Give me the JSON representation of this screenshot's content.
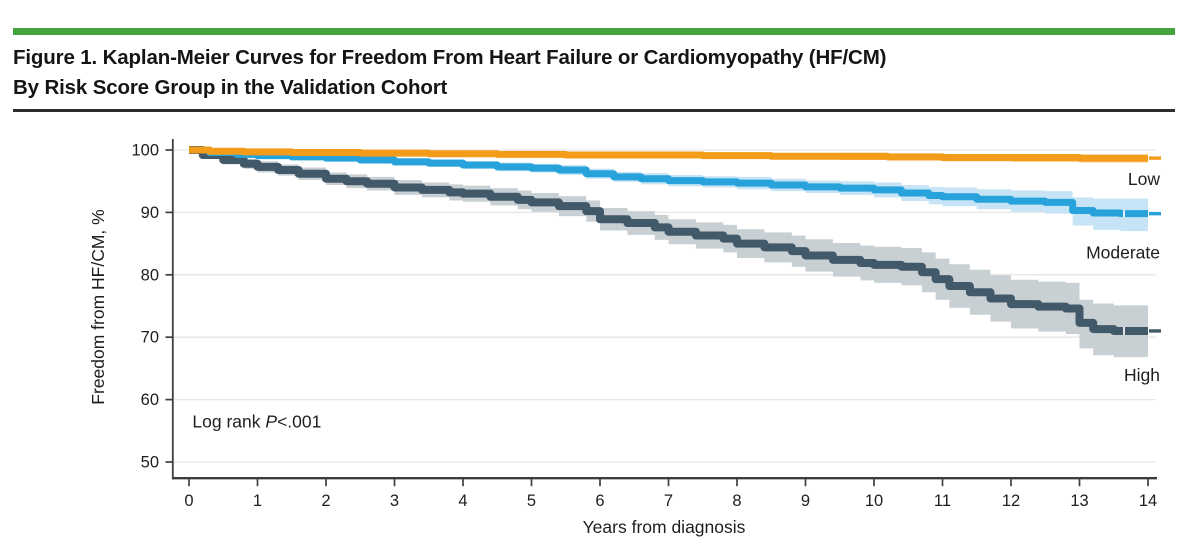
{
  "figure": {
    "title_line1": "Figure 1. Kaplan-Meier Curves for Freedom From Heart Failure or Cardiomyopathy (HF/CM)",
    "title_line2": "By Risk Score Group in the Validation Cohort",
    "accent_bar_color": "#46a33e",
    "rule_color": "#2d2d2d"
  },
  "chart_data": {
    "type": "line",
    "subtype": "kaplan-meier-step-with-confidence-bands",
    "title": "",
    "xlabel": "Years from diagnosis",
    "ylabel": "Freedom from HF/CM, %",
    "xlim": [
      0,
      14
    ],
    "ylim": [
      50,
      100
    ],
    "x_ticks": [
      0,
      1,
      2,
      3,
      4,
      5,
      6,
      7,
      8,
      9,
      10,
      11,
      12,
      13,
      14
    ],
    "y_ticks": [
      50,
      60,
      70,
      80,
      90,
      100
    ],
    "grid": true,
    "gridline_color": "#e6e6e6",
    "legend_position": "direct-labels-right-of-curves",
    "annotation": {
      "prefix": "Log rank ",
      "italic": "P",
      "suffix": "<.001",
      "x": 0.05,
      "y": 56.5
    },
    "series": [
      {
        "name": "Low",
        "color": "#F39C1A",
        "band_color": "#F9CD85",
        "line_width": 7,
        "label_dy": 27,
        "censor_marks": [],
        "points_format": [
          "years",
          "percent",
          "ci_lower",
          "ci_upper"
        ],
        "points": [
          [
            0,
            100,
            100,
            100
          ],
          [
            0.3,
            99.8,
            99.5,
            100
          ],
          [
            0.8,
            99.7,
            99.4,
            99.9
          ],
          [
            1.5,
            99.6,
            99.3,
            99.9
          ],
          [
            2.5,
            99.5,
            99.1,
            99.8
          ],
          [
            3.5,
            99.4,
            99.0,
            99.8
          ],
          [
            4.5,
            99.3,
            98.9,
            99.7
          ],
          [
            5.5,
            99.2,
            98.8,
            99.6
          ],
          [
            6.5,
            99.2,
            98.7,
            99.6
          ],
          [
            7.5,
            99.1,
            98.6,
            99.5
          ],
          [
            8.5,
            99.0,
            98.5,
            99.5
          ],
          [
            9.5,
            99.0,
            98.4,
            99.4
          ],
          [
            10.2,
            98.9,
            98.3,
            99.4
          ],
          [
            11,
            98.8,
            98.2,
            99.3
          ],
          [
            12,
            98.8,
            98.1,
            99.3
          ],
          [
            13,
            98.7,
            98.0,
            99.2
          ],
          [
            14,
            98.7,
            98.0,
            99.2
          ]
        ]
      },
      {
        "name": "Moderate",
        "color": "#27A2DB",
        "band_color": "#C6E4F5",
        "line_width": 7,
        "label_dy": 45,
        "censor_marks": [
          13.65
        ],
        "points_format": [
          "years",
          "percent",
          "ci_lower",
          "ci_upper"
        ],
        "points": [
          [
            0,
            100,
            100,
            100
          ],
          [
            0.3,
            99.6,
            99.3,
            99.9
          ],
          [
            0.7,
            99.3,
            98.9,
            99.7
          ],
          [
            1,
            99.1,
            98.7,
            99.5
          ],
          [
            1.5,
            98.9,
            98.4,
            99.3
          ],
          [
            2,
            98.7,
            98.2,
            99.2
          ],
          [
            2.5,
            98.4,
            97.9,
            98.9
          ],
          [
            3,
            98.1,
            97.5,
            98.7
          ],
          [
            3.5,
            97.9,
            97.3,
            98.5
          ],
          [
            4,
            97.6,
            97.0,
            98.2
          ],
          [
            4.5,
            97.3,
            96.6,
            98.0
          ],
          [
            5,
            97.1,
            96.4,
            97.8
          ],
          [
            5.4,
            96.8,
            96.0,
            97.6
          ],
          [
            5.8,
            96.2,
            95.4,
            97.0
          ],
          [
            6.2,
            95.7,
            94.9,
            96.5
          ],
          [
            6.6,
            95.4,
            94.5,
            96.3
          ],
          [
            7,
            95.1,
            94.2,
            96.0
          ],
          [
            7.5,
            94.9,
            94.0,
            95.8
          ],
          [
            8,
            94.7,
            93.7,
            95.7
          ],
          [
            8.5,
            94.4,
            93.4,
            95.4
          ],
          [
            9,
            94.1,
            93.1,
            95.1
          ],
          [
            9.5,
            93.9,
            92.8,
            95.0
          ],
          [
            10,
            93.6,
            92.4,
            94.8
          ],
          [
            10.4,
            93.1,
            91.8,
            94.4
          ],
          [
            10.8,
            92.7,
            91.3,
            94.1
          ],
          [
            11,
            92.5,
            91.0,
            94.0
          ],
          [
            11.5,
            92.1,
            90.5,
            93.7
          ],
          [
            12,
            91.8,
            90.1,
            93.5
          ],
          [
            12.5,
            91.6,
            89.8,
            93.4
          ],
          [
            12.9,
            90.3,
            87.9,
            92.4
          ],
          [
            13.2,
            89.9,
            87.2,
            92.2
          ],
          [
            13.6,
            89.8,
            87.0,
            92.2
          ],
          [
            14,
            89.8,
            87.0,
            92.2
          ]
        ]
      },
      {
        "name": "High",
        "color": "#42596A",
        "band_color": "#C9D0D4",
        "line_width": 8,
        "label_dy": 50,
        "censor_marks": [
          13.65
        ],
        "points_format": [
          "years",
          "percent",
          "ci_lower",
          "ci_upper"
        ],
        "points": [
          [
            0,
            100,
            100,
            100
          ],
          [
            0.2,
            99.2,
            98.7,
            99.7
          ],
          [
            0.5,
            98.4,
            97.7,
            99.1
          ],
          [
            0.8,
            97.8,
            97.0,
            98.6
          ],
          [
            1,
            97.3,
            96.4,
            98.2
          ],
          [
            1.3,
            96.8,
            95.9,
            97.7
          ],
          [
            1.6,
            96.2,
            95.2,
            97.2
          ],
          [
            2,
            95.4,
            94.4,
            96.4
          ],
          [
            2.3,
            95.0,
            93.9,
            96.1
          ],
          [
            2.6,
            94.6,
            93.5,
            95.7
          ],
          [
            3,
            94.0,
            92.8,
            95.2
          ],
          [
            3.4,
            93.6,
            92.4,
            94.8
          ],
          [
            3.8,
            93.2,
            91.9,
            94.5
          ],
          [
            4,
            93.0,
            91.7,
            94.3
          ],
          [
            4.4,
            92.5,
            91.1,
            93.9
          ],
          [
            4.8,
            92.0,
            90.5,
            93.5
          ],
          [
            5,
            91.6,
            90.1,
            93.1
          ],
          [
            5.4,
            91.0,
            89.4,
            92.6
          ],
          [
            5.8,
            90.2,
            88.5,
            91.9
          ],
          [
            6,
            88.9,
            87.1,
            90.7
          ],
          [
            6.4,
            88.3,
            86.4,
            90.2
          ],
          [
            6.8,
            87.6,
            85.6,
            89.6
          ],
          [
            7,
            86.9,
            84.9,
            88.9
          ],
          [
            7.4,
            86.3,
            84.2,
            88.4
          ],
          [
            7.8,
            85.8,
            83.6,
            88.0
          ],
          [
            8,
            85.0,
            82.7,
            87.3
          ],
          [
            8.4,
            84.4,
            82.0,
            86.8
          ],
          [
            8.8,
            83.8,
            81.3,
            86.3
          ],
          [
            9,
            83.1,
            80.5,
            85.7
          ],
          [
            9.4,
            82.4,
            79.7,
            85.1
          ],
          [
            9.8,
            81.9,
            79.1,
            84.7
          ],
          [
            10,
            81.6,
            78.7,
            84.5
          ],
          [
            10.4,
            81.3,
            78.3,
            84.3
          ],
          [
            10.7,
            80.4,
            77.2,
            83.6
          ],
          [
            10.9,
            79.3,
            76.0,
            82.6
          ],
          [
            11.1,
            78.2,
            74.7,
            81.7
          ],
          [
            11.4,
            77.2,
            73.6,
            80.8
          ],
          [
            11.7,
            76.2,
            72.5,
            79.9
          ],
          [
            12,
            75.3,
            71.4,
            79.2
          ],
          [
            12.4,
            74.9,
            70.9,
            78.9
          ],
          [
            12.8,
            74.6,
            70.5,
            78.7
          ],
          [
            13,
            72.3,
            68.2,
            76.0
          ],
          [
            13.2,
            71.3,
            67.1,
            75.4
          ],
          [
            13.5,
            71.0,
            66.8,
            75.1
          ],
          [
            14,
            71.0,
            66.8,
            75.1
          ]
        ]
      }
    ]
  }
}
